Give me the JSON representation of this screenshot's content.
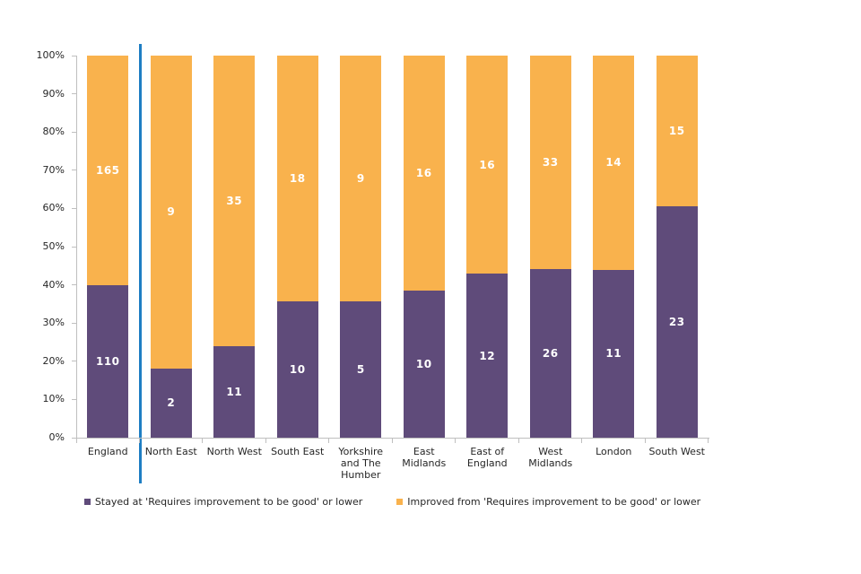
{
  "colors": {
    "stayed": "#5F4B7A",
    "improved": "#F9B24D",
    "separator": "#1E7EC3",
    "axis": "#BFBFBF",
    "text": "#262626",
    "data_label": "#FFFFFF"
  },
  "chart_data": {
    "type": "bar",
    "subtype": "100%-stacked-column",
    "title": "",
    "xlabel": "",
    "ylabel": "",
    "categories": [
      "England",
      "North East",
      "North West",
      "South East",
      "Yorkshire and The Humber",
      "East Midlands",
      "East of England",
      "West Midlands",
      "London",
      "South West"
    ],
    "series": [
      {
        "name": "Stayed at 'Requires improvement to be good' or lower",
        "color_key": "stayed",
        "values": [
          110,
          2,
          11,
          10,
          5,
          10,
          12,
          26,
          11,
          23
        ]
      },
      {
        "name": "Improved from 'Requires improvement to be good' or lower",
        "color_key": "improved",
        "values": [
          165,
          9,
          35,
          18,
          9,
          16,
          16,
          33,
          14,
          15
        ]
      }
    ],
    "y_ticks": [
      "100%",
      "90%",
      "80%",
      "70%",
      "60%",
      "50%",
      "40%",
      "30%",
      "20%",
      "10%",
      "0%"
    ],
    "ylim": [
      "0%",
      "100%"
    ],
    "grid": "off",
    "legend_position": "bottom",
    "separator_after_index": 1
  }
}
